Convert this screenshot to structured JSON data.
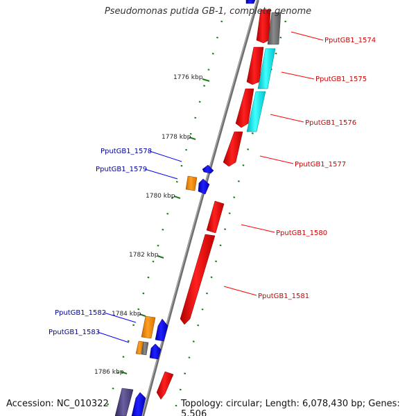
{
  "title": "Pseudomonas putida GB-1, complete genome",
  "accession": "Accession: NC_010322",
  "topology": "Topology: circular; Length: 6,078,430 bp; Genes: 5,506",
  "colors": {
    "backbone": "#808080",
    "forward_gene": "#ff0000",
    "reverse_gene": "#0000ff",
    "forward_label": "#cc0000",
    "reverse_label": "#000099",
    "orange_feature": "#ff8c00",
    "cyan_feature": "#00e5ee",
    "gray_feature": "#707070",
    "purple_feature": "#48407a",
    "tick": "#1a7a1a"
  },
  "kbp_ticks": [
    "1776 kbp",
    "1778 kbp",
    "1780 kbp",
    "1782 kbp",
    "1784 kbp",
    "1786 kbp"
  ],
  "forward_gene_labels": [
    "PputGB1_1574",
    "PputGB1_1575",
    "PputGB1_1576",
    "PputGB1_1577",
    "PputGB1_1580",
    "PputGB1_1581"
  ],
  "reverse_gene_labels": [
    "PputGB1_1578",
    "PputGB1_1579",
    "PputGB1_1582",
    "PputGB1_1583"
  ]
}
